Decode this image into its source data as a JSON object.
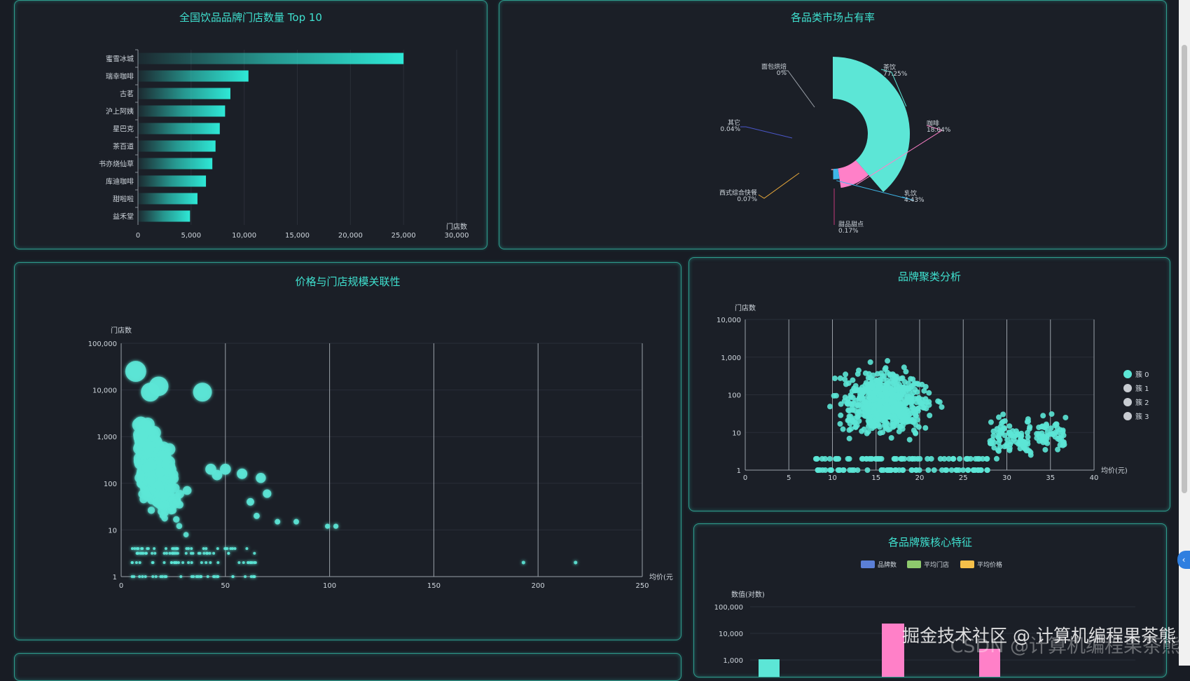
{
  "colors": {
    "accent": "#3fe0cf",
    "pink": "#ff80c8",
    "blue": "#5b7fd6",
    "green": "#8ec96d",
    "yellow": "#f5c04a"
  },
  "bar_panel": {
    "title": "全国饮品品牌门店数量 Top 10"
  },
  "pie_panel": {
    "title": "各品类市场占有率"
  },
  "price_panel": {
    "title": "价格与门店规模关联性"
  },
  "cluster_panel": {
    "title": "品牌聚类分析"
  },
  "feature_panel": {
    "title": "各品牌簇核心特征"
  },
  "watermark": {
    "line1": "掘金技术社区 @ 计算机编程果茶熊",
    "line2": "CSDN @计算机编程果茶熊"
  },
  "chart_data": [
    {
      "type": "bar",
      "orientation": "horizontal",
      "categories": [
        "蜜雪冰城",
        "瑞幸咖啡",
        "古茗",
        "沪上阿姨",
        "星巴克",
        "茶百道",
        "书亦烧仙草",
        "库迪咖啡",
        "甜啦啦",
        "益禾堂"
      ],
      "values": [
        25000,
        10400,
        8700,
        8200,
        7700,
        7300,
        7000,
        6400,
        5600,
        4900
      ],
      "xlabel": "门店数",
      "xlim": [
        0,
        30000
      ],
      "xticks": [
        "0",
        "5,000",
        "10,000",
        "15,000",
        "20,000",
        "25,000",
        "30,000"
      ]
    },
    {
      "type": "pie",
      "style": "rose",
      "slices": [
        {
          "name": "茶饮",
          "label": "77.25%",
          "value": 77.25,
          "color": "#5ce6d6"
        },
        {
          "name": "咖啡",
          "label": "18.04%",
          "value": 18.04,
          "color": "#ff80c8"
        },
        {
          "name": "乳饮",
          "label": "4.43%",
          "value": 4.43,
          "color": "#3eb6e8"
        },
        {
          "name": "甜品甜点",
          "label": "0.17%",
          "value": 0.17,
          "color": "#c0387a"
        },
        {
          "name": "西式综合快餐",
          "label": "0.07%",
          "value": 0.07,
          "color": "#e8a83a"
        },
        {
          "name": "其它",
          "label": "0.04%",
          "value": 0.04,
          "color": "#4a56c8"
        },
        {
          "name": "面包烘焙",
          "label": "0%",
          "value": 0,
          "color": "#9aa0a8"
        }
      ]
    },
    {
      "type": "scatter",
      "xlabel": "均价(元",
      "ylabel": "门店数",
      "xlim": [
        0,
        250
      ],
      "ylog": true,
      "yticks": [
        "1",
        "10",
        "100",
        "1,000",
        "10,000",
        "100,000"
      ],
      "xticks": [
        "0",
        "50",
        "100",
        "150",
        "200",
        "250"
      ],
      "highlights": [
        [
          7,
          25000
        ],
        [
          39,
          9000
        ],
        [
          18,
          12000
        ],
        [
          14,
          9000
        ],
        [
          43,
          200
        ],
        [
          46,
          150
        ],
        [
          50,
          200
        ],
        [
          58,
          160
        ],
        [
          67,
          130
        ],
        [
          70,
          60
        ],
        [
          62,
          40
        ],
        [
          65,
          20
        ],
        [
          75,
          15
        ],
        [
          84,
          15
        ],
        [
          99,
          12
        ],
        [
          103,
          12
        ],
        [
          193,
          2
        ],
        [
          218,
          2
        ]
      ]
    },
    {
      "type": "scatter",
      "xlabel": "均价(元)",
      "ylabel": "门店数",
      "xlim": [
        0,
        40
      ],
      "ylog": true,
      "yticks": [
        "1",
        "10",
        "100",
        "1,000",
        "10,000"
      ],
      "xticks": [
        "0",
        "5",
        "10",
        "15",
        "20",
        "25",
        "30",
        "35",
        "40"
      ],
      "legend": [
        "簇 0",
        "簇 1",
        "簇 2",
        "簇 3"
      ],
      "legend_position": "right"
    },
    {
      "type": "bar",
      "legend": [
        "品牌数",
        "平均门店",
        "平均价格"
      ],
      "ylabel": "数值(对数)",
      "yticks": [
        "1,000",
        "10,000",
        "100,000"
      ],
      "ylog": true
    }
  ]
}
